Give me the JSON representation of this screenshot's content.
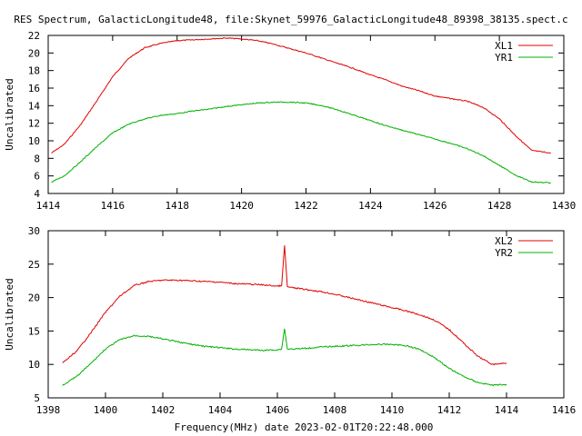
{
  "title": "RES Spectrum, GalacticLongitude48, file:Skynet_59976_GalacticLongitude48_89398_38135.spect.c",
  "xlabel_bottom": "Frequency(MHz) date 2023-02-01T20:22:48.000",
  "chart_data": [
    {
      "type": "line",
      "ylabel": "Uncalibrated",
      "xlim": [
        1414,
        1430
      ],
      "ylim": [
        4,
        22
      ],
      "xticks": [
        1414,
        1416,
        1418,
        1420,
        1422,
        1424,
        1426,
        1428,
        1430
      ],
      "yticks": [
        4,
        6,
        8,
        10,
        12,
        14,
        16,
        18,
        20,
        22
      ],
      "legend_position": "top-right",
      "series": [
        {
          "name": "XL1",
          "color": "#e00000",
          "x": [
            1414.1,
            1414.5,
            1415.0,
            1415.5,
            1416.0,
            1416.5,
            1417.0,
            1417.5,
            1418.0,
            1418.5,
            1419.0,
            1419.5,
            1420.0,
            1420.5,
            1421.0,
            1421.5,
            1422.0,
            1422.5,
            1423.0,
            1423.5,
            1424.0,
            1424.5,
            1425.0,
            1425.5,
            1426.0,
            1426.5,
            1427.0,
            1427.5,
            1428.0,
            1428.5,
            1429.0,
            1429.6
          ],
          "values": [
            8.6,
            9.6,
            11.8,
            14.5,
            17.3,
            19.4,
            20.6,
            21.1,
            21.4,
            21.5,
            21.6,
            21.7,
            21.6,
            21.4,
            21.0,
            20.5,
            20.0,
            19.4,
            18.8,
            18.2,
            17.5,
            16.9,
            16.2,
            15.7,
            15.1,
            14.8,
            14.5,
            13.8,
            12.5,
            10.6,
            8.9,
            8.6
          ]
        },
        {
          "name": "YR1",
          "color": "#00b000",
          "x": [
            1414.1,
            1414.5,
            1415.0,
            1415.5,
            1416.0,
            1416.5,
            1417.0,
            1417.5,
            1418.0,
            1418.5,
            1419.0,
            1419.5,
            1420.0,
            1420.5,
            1421.0,
            1421.5,
            1422.0,
            1422.5,
            1423.0,
            1423.5,
            1424.0,
            1424.5,
            1425.0,
            1425.5,
            1426.0,
            1426.5,
            1427.0,
            1427.5,
            1428.0,
            1428.5,
            1429.0,
            1429.6
          ],
          "values": [
            5.3,
            6.0,
            7.6,
            9.3,
            10.9,
            11.9,
            12.5,
            12.9,
            13.1,
            13.4,
            13.6,
            13.9,
            14.1,
            14.3,
            14.4,
            14.4,
            14.3,
            14.0,
            13.5,
            12.9,
            12.3,
            11.7,
            11.2,
            10.7,
            10.2,
            9.7,
            9.1,
            8.3,
            7.2,
            6.1,
            5.3,
            5.2
          ]
        }
      ]
    },
    {
      "type": "line",
      "ylabel": "Uncalibrated",
      "xlim": [
        1398,
        1416
      ],
      "ylim": [
        5,
        30
      ],
      "xticks": [
        1398,
        1400,
        1402,
        1404,
        1406,
        1408,
        1410,
        1412,
        1414,
        1416
      ],
      "yticks": [
        5,
        10,
        15,
        20,
        25,
        30
      ],
      "legend_position": "top-right",
      "series": [
        {
          "name": "XL2",
          "color": "#e00000",
          "x": [
            1398.5,
            1399.0,
            1399.5,
            1400.0,
            1400.5,
            1401.0,
            1401.5,
            1402.0,
            1402.5,
            1403.0,
            1403.5,
            1404.0,
            1404.5,
            1405.0,
            1405.5,
            1406.0,
            1406.15,
            1406.25,
            1406.35,
            1406.5,
            1407.0,
            1407.5,
            1408.0,
            1408.5,
            1409.0,
            1409.5,
            1410.0,
            1410.5,
            1411.0,
            1411.5,
            1412.0,
            1412.5,
            1413.0,
            1413.5,
            1414.0
          ],
          "values": [
            10.2,
            12.0,
            14.8,
            17.8,
            20.2,
            21.8,
            22.4,
            22.6,
            22.6,
            22.5,
            22.4,
            22.3,
            22.1,
            22.0,
            21.9,
            21.7,
            21.8,
            27.8,
            21.6,
            21.5,
            21.2,
            20.9,
            20.5,
            20.0,
            19.5,
            19.0,
            18.5,
            18.0,
            17.4,
            16.6,
            15.2,
            13.2,
            11.2,
            10.0,
            10.2
          ]
        },
        {
          "name": "YR2",
          "color": "#00b000",
          "x": [
            1398.5,
            1399.0,
            1399.5,
            1400.0,
            1400.5,
            1401.0,
            1401.5,
            1402.0,
            1402.5,
            1403.0,
            1403.5,
            1404.0,
            1404.5,
            1405.0,
            1405.5,
            1406.0,
            1406.15,
            1406.25,
            1406.35,
            1406.5,
            1407.0,
            1407.5,
            1408.0,
            1408.5,
            1409.0,
            1409.5,
            1410.0,
            1410.5,
            1411.0,
            1411.5,
            1412.0,
            1412.5,
            1413.0,
            1413.5,
            1414.0
          ],
          "values": [
            6.9,
            8.2,
            10.2,
            12.3,
            13.7,
            14.3,
            14.2,
            13.8,
            13.4,
            13.0,
            12.7,
            12.5,
            12.3,
            12.2,
            12.1,
            12.2,
            12.3,
            15.4,
            12.3,
            12.3,
            12.4,
            12.6,
            12.7,
            12.8,
            12.9,
            13.0,
            13.0,
            12.8,
            12.2,
            11.0,
            9.4,
            8.2,
            7.3,
            6.9,
            7.0
          ]
        }
      ]
    }
  ]
}
